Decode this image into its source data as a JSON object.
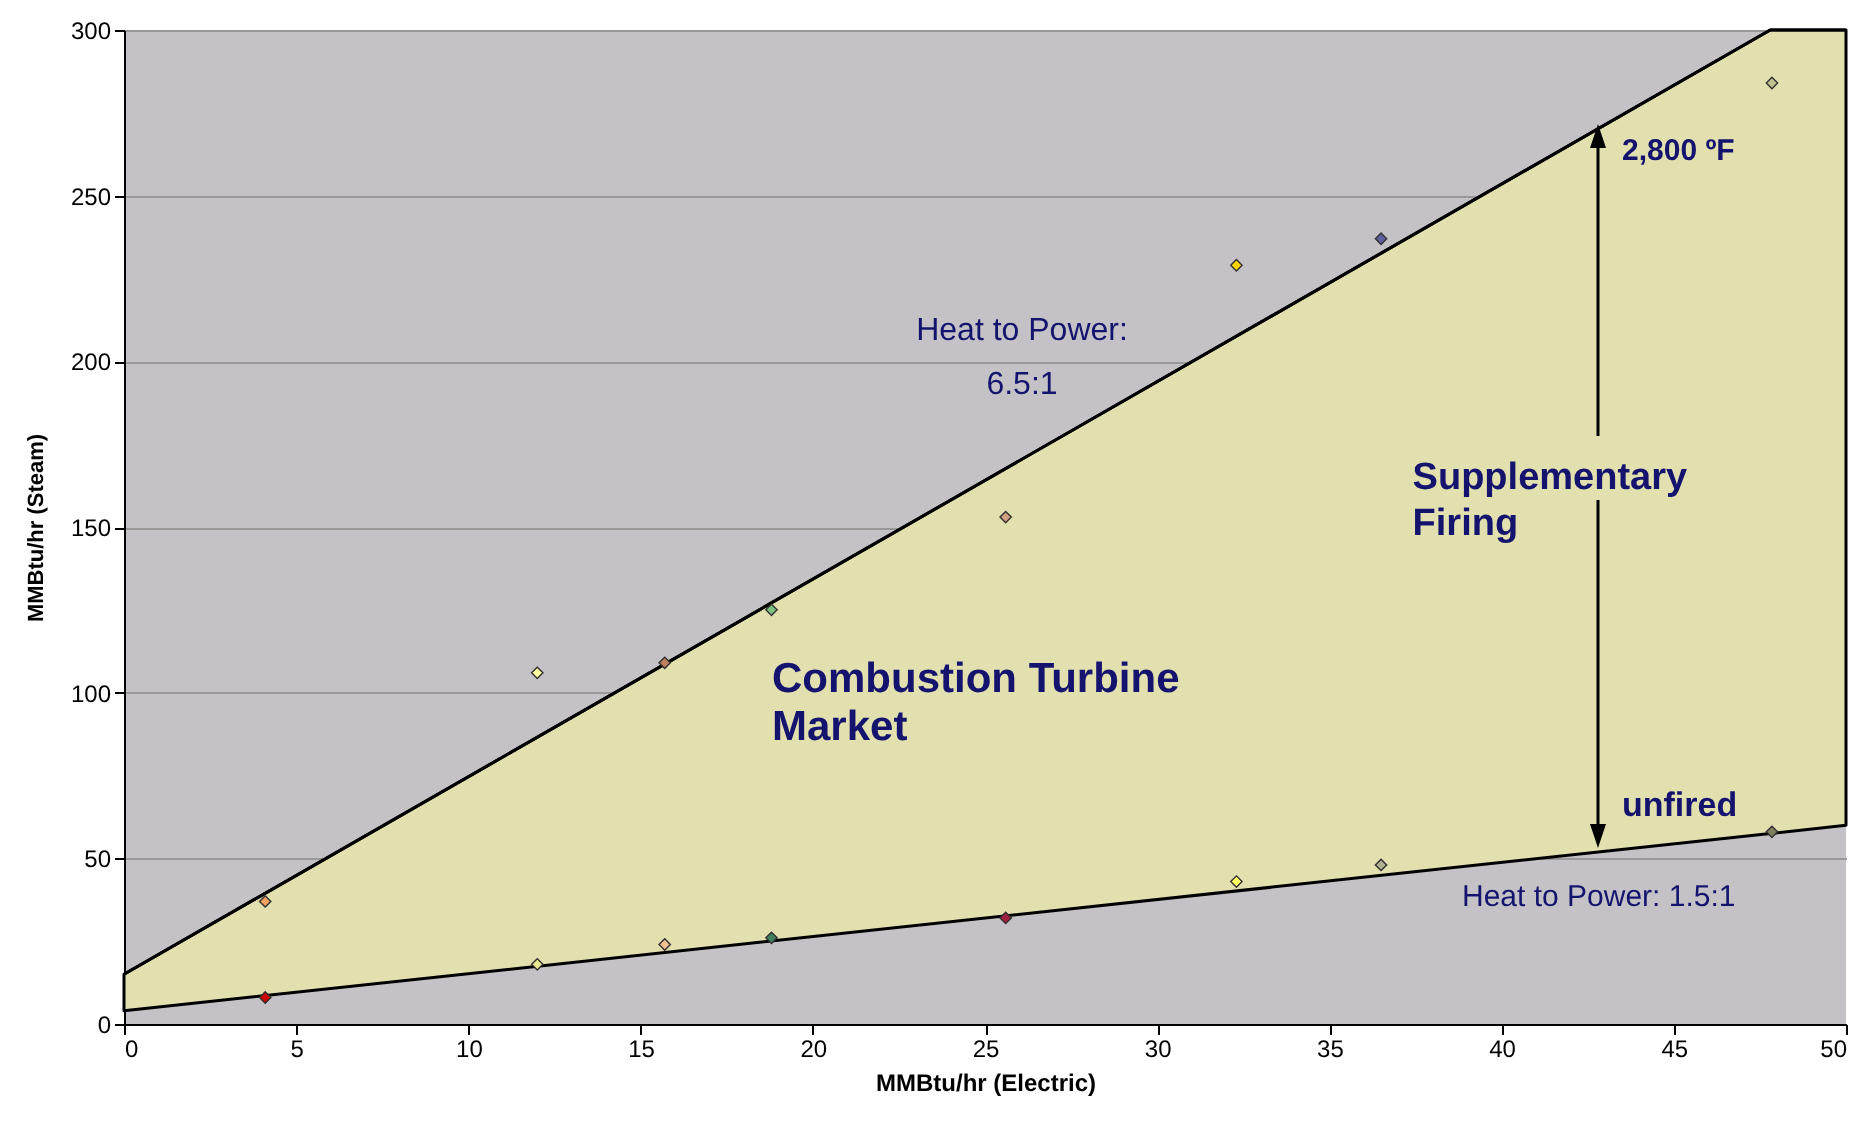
{
  "chart_data": {
    "type": "scatter",
    "xlabel": "MMBtu/hr (Electric)",
    "ylabel": "MMBtu/hr (Steam)",
    "xlim": [
      0,
      50
    ],
    "ylim": [
      0,
      300
    ],
    "xticks": [
      0,
      5,
      10,
      15,
      20,
      25,
      30,
      35,
      40,
      45,
      50
    ],
    "yticks": [
      0,
      50,
      100,
      150,
      200,
      250,
      300
    ],
    "grid": "y",
    "annotations": [
      "Heat to Power:\n6.5:1",
      "Combustion  Turbine\nMarket",
      {
        "text": "Supplementary\nFiring",
        "x": 42.7,
        "y": 270
      },
      "2,800 ºF",
      "unfired",
      "Heat to Power:  1.5:1"
    ],
    "series": [
      {
        "type": "line",
        "color": "#000000",
        "x": [
          0,
          47.8,
          50
        ],
        "values": [
          15,
          300,
          300
        ],
        "lower": [
          4,
          57.5,
          60
        ],
        "upper": [
          15,
          300,
          300
        ]
      },
      {
        "marker": "diamond",
        "x": [
          4.1,
          4.1,
          12,
          12,
          15.7,
          15.7,
          18.8,
          18.8,
          25.6,
          25.6,
          32.3,
          32.3,
          36.5,
          36.5,
          47.85,
          47.85
        ],
        "values": [
          37,
          8,
          106,
          18,
          109,
          24,
          125,
          26,
          153,
          32,
          229,
          43,
          237,
          48,
          284,
          58
        ],
        "colors": [
          "#f4a060",
          "#cc0000",
          "#ffffa0",
          "#e8e890",
          "#c08060",
          "#f0c090",
          "#80c080",
          "#408060",
          "#d0a080",
          "#a02040",
          "#ffd700",
          "#ffff60",
          "#6060a0",
          "#b0b090",
          "#c0c090",
          "#808060"
        ]
      }
    ]
  }
}
